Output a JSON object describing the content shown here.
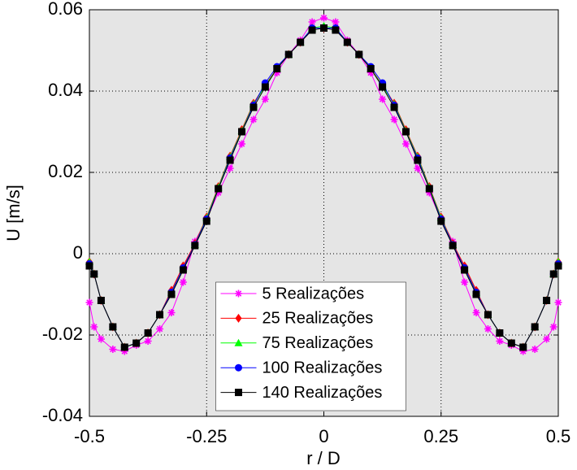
{
  "chart_data": {
    "type": "line",
    "xlabel": "r / D",
    "ylabel": "U [m/s]",
    "x": [
      -0.5,
      -0.49,
      -0.475,
      -0.45,
      -0.425,
      -0.4,
      -0.375,
      -0.35,
      -0.325,
      -0.3,
      -0.275,
      -0.25,
      -0.225,
      -0.2,
      -0.175,
      -0.15,
      -0.125,
      -0.1,
      -0.075,
      -0.05,
      -0.025,
      0,
      0.025,
      0.05,
      0.075,
      0.1,
      0.125,
      0.15,
      0.175,
      0.2,
      0.225,
      0.25,
      0.275,
      0.3,
      0.325,
      0.35,
      0.375,
      0.4,
      0.425,
      0.45,
      0.475,
      0.49,
      0.5
    ],
    "series": [
      {
        "name": "5 Realizações",
        "color": "#ff00ff",
        "marker": "star",
        "values": [
          -0.012,
          -0.018,
          -0.021,
          -0.0235,
          -0.024,
          -0.0225,
          -0.0215,
          -0.0185,
          -0.0145,
          -0.007,
          0.003,
          0.0085,
          0.015,
          0.021,
          0.027,
          0.033,
          0.038,
          0.0445,
          0.049,
          0.0525,
          0.057,
          0.058,
          0.057,
          0.0525,
          0.049,
          0.0445,
          0.038,
          0.033,
          0.027,
          0.021,
          0.015,
          0.0085,
          0.003,
          -0.007,
          -0.0145,
          -0.0185,
          -0.0215,
          -0.0225,
          -0.024,
          -0.0235,
          -0.021,
          -0.018,
          -0.012
        ]
      },
      {
        "name": "25 Realizações",
        "color": "#ff0000",
        "marker": "diamond",
        "values": [
          -0.002,
          -0.005,
          -0.0115,
          -0.018,
          -0.023,
          -0.022,
          -0.0195,
          -0.015,
          -0.009,
          -0.003,
          0.0025,
          0.009,
          0.0165,
          0.024,
          0.0305,
          0.037,
          0.0415,
          0.0455,
          0.049,
          0.052,
          0.0555,
          0.0555,
          0.0555,
          0.052,
          0.049,
          0.0455,
          0.0415,
          0.037,
          0.0305,
          0.024,
          0.0165,
          0.009,
          0.0025,
          -0.003,
          -0.009,
          -0.015,
          -0.0195,
          -0.022,
          -0.023,
          -0.018,
          -0.0115,
          -0.005,
          -0.002
        ]
      },
      {
        "name": "75 Realizações",
        "color": "#00ff00",
        "marker": "triangle",
        "values": [
          -0.002,
          -0.005,
          -0.0115,
          -0.018,
          -0.023,
          -0.022,
          -0.0195,
          -0.015,
          -0.0095,
          -0.0035,
          0.0022,
          0.0088,
          0.0163,
          0.0238,
          0.0302,
          0.0368,
          0.0413,
          0.0455,
          0.049,
          0.052,
          0.0555,
          0.056,
          0.0555,
          0.052,
          0.049,
          0.0455,
          0.0413,
          0.0368,
          0.0302,
          0.0238,
          0.0163,
          0.0088,
          0.0022,
          -0.0035,
          -0.0095,
          -0.015,
          -0.0195,
          -0.022,
          -0.023,
          -0.018,
          -0.0115,
          -0.005,
          -0.002
        ]
      },
      {
        "name": "100 Realizações",
        "color": "#0000ff",
        "marker": "circle",
        "values": [
          -0.0025,
          -0.005,
          -0.0115,
          -0.018,
          -0.023,
          -0.022,
          -0.0195,
          -0.015,
          -0.0095,
          -0.0035,
          0.0022,
          0.0085,
          0.016,
          0.0235,
          0.03,
          0.0365,
          0.042,
          0.046,
          0.049,
          0.052,
          0.0555,
          0.0555,
          0.0555,
          0.052,
          0.049,
          0.046,
          0.042,
          0.0365,
          0.03,
          0.0235,
          0.016,
          0.0085,
          0.0022,
          -0.0035,
          -0.0095,
          -0.015,
          -0.0195,
          -0.022,
          -0.023,
          -0.018,
          -0.0115,
          -0.005,
          -0.0025
        ]
      },
      {
        "name": "140 Realizações",
        "color": "#000000",
        "marker": "square",
        "values": [
          -0.003,
          -0.005,
          -0.0115,
          -0.018,
          -0.023,
          -0.022,
          -0.0195,
          -0.015,
          -0.01,
          -0.004,
          0.002,
          0.008,
          0.016,
          0.023,
          0.03,
          0.036,
          0.041,
          0.0455,
          0.049,
          0.052,
          0.055,
          0.0555,
          0.055,
          0.052,
          0.049,
          0.0455,
          0.041,
          0.036,
          0.03,
          0.023,
          0.016,
          0.008,
          0.002,
          -0.004,
          -0.01,
          -0.015,
          -0.0195,
          -0.022,
          -0.023,
          -0.018,
          -0.0115,
          -0.005,
          -0.003
        ]
      }
    ],
    "xlim": [
      -0.5,
      0.5
    ],
    "xticks": [
      -0.5,
      -0.25,
      0,
      0.25,
      0.5
    ],
    "ylim": [
      -0.04,
      0.06
    ],
    "yticks": [
      -0.04,
      -0.02,
      0,
      0.02,
      0.04,
      0.06
    ],
    "grid": true,
    "legend": "lower center"
  }
}
